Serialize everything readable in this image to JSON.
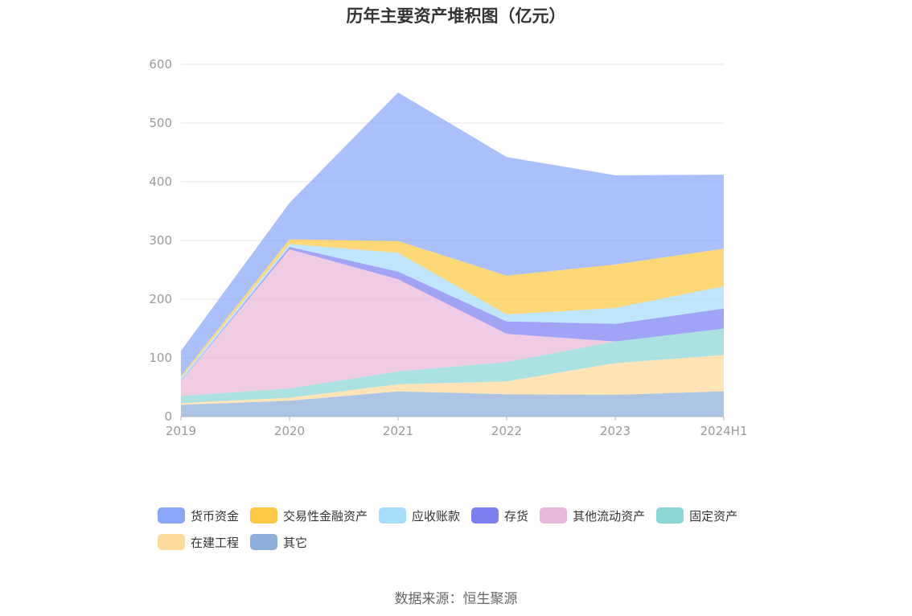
{
  "source_text": "数据来源：恒生聚源",
  "chart_data": {
    "type": "area",
    "stacked": true,
    "title": "历年主要资产堆积图（亿元）",
    "xlabel": "",
    "ylabel": "",
    "categories": [
      "2019",
      "2020",
      "2021",
      "2022",
      "2023",
      "2024H1"
    ],
    "ylim": [
      0,
      600
    ],
    "yticks": [
      0,
      100,
      200,
      300,
      400,
      500,
      600
    ],
    "grid": true,
    "legend_position": "bottom",
    "series": [
      {
        "name": "其它",
        "color": "#8eaedb",
        "values": [
          20,
          27,
          43,
          38,
          37,
          43
        ]
      },
      {
        "name": "在建工程",
        "color": "#fdd99a",
        "values": [
          3,
          5,
          12,
          22,
          54,
          62
        ]
      },
      {
        "name": "固定资产",
        "color": "#8ad7d6",
        "values": [
          12,
          16,
          22,
          33,
          37,
          45
        ]
      },
      {
        "name": "其他流动资产",
        "color": "#e9b8da",
        "values": [
          25,
          237,
          157,
          48,
          0,
          0
        ]
      },
      {
        "name": "存货",
        "color": "#7b7ff2",
        "values": [
          1,
          4,
          13,
          21,
          30,
          34
        ]
      },
      {
        "name": "应收账款",
        "color": "#a6ddfb",
        "values": [
          5,
          5,
          32,
          12,
          27,
          38
        ]
      },
      {
        "name": "交易性金融资产",
        "color": "#fdc843",
        "values": [
          3,
          8,
          20,
          66,
          74,
          64
        ]
      },
      {
        "name": "货币资金",
        "color": "#88a7fb",
        "values": [
          43,
          62,
          253,
          202,
          152,
          126
        ]
      }
    ]
  }
}
